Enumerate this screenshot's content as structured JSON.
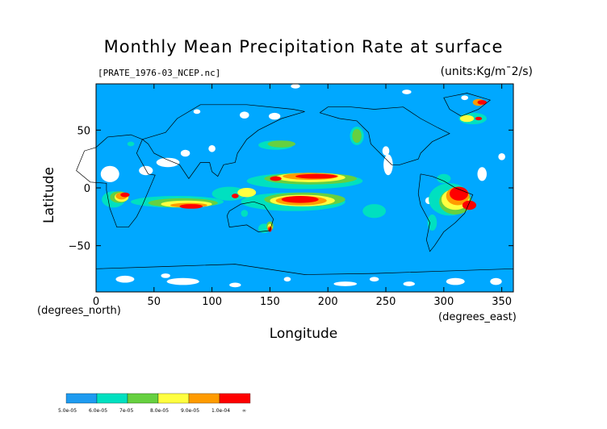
{
  "chart_data": {
    "type": "heatmap",
    "title": "Monthly Mean Precipitation Rate at surface",
    "file_label": "[PRATE_1976-03_NCEP.nc]",
    "units": "(units:Kg/m¯2/s)",
    "xlabel": "Longitude",
    "ylabel": "Latitude",
    "x_unit": "(degrees_east)",
    "y_unit": "(degrees_north)",
    "xlim": [
      0,
      360
    ],
    "ylim": [
      -90,
      90
    ],
    "x_ticks": [
      "0",
      "50",
      "100",
      "150",
      "200",
      "250",
      "300",
      "350"
    ],
    "x_tick_values": [
      0,
      50,
      100,
      150,
      200,
      250,
      300,
      350
    ],
    "y_ticks": [
      "50",
      "0",
      "−50"
    ],
    "y_tick_values": [
      50,
      0,
      -50
    ],
    "colorbar": {
      "labels": [
        "5.0e-05",
        "6.0e-05",
        "7e-05",
        "8.0e-05",
        "9.0e-05",
        "1.0e-04",
        "∞"
      ],
      "colors": [
        "#1e9bf0",
        "#00e0c0",
        "#66d040",
        "#ffff40",
        "#ff9b00",
        "#ff0000"
      ]
    },
    "colors": {
      "background": "#00a8ff",
      "missing": "#ffffff",
      "level1": "#00e0c0",
      "level2": "#66d040",
      "level3": "#ffff40",
      "level4": "#ff9b00",
      "level5": "#ff0000"
    }
  }
}
